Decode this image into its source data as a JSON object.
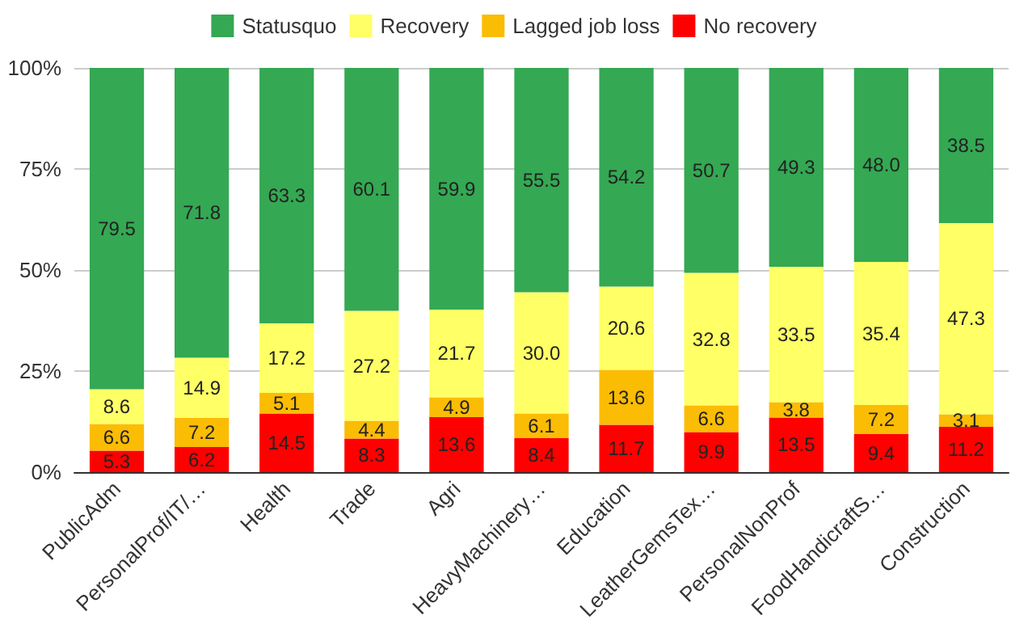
{
  "chart_data": {
    "type": "bar",
    "stacked": true,
    "categories": [
      "PublicAdm",
      "PersonalProf/IT/…",
      "Health",
      "Trade",
      "Agri",
      "HeavyMachinery…",
      "Education",
      "LeatherGemsTex…",
      "PersonalNonProf",
      "FoodHandicraftS…",
      "Construction"
    ],
    "series": [
      {
        "name": "No recovery",
        "color": "#ff0000",
        "values": [
          5.3,
          6.2,
          14.5,
          8.3,
          13.6,
          8.4,
          11.7,
          9.9,
          13.5,
          9.4,
          11.2
        ],
        "value_labels": [
          "5.3",
          "6.2",
          "14.5",
          "8.3",
          "13.6",
          "8.4",
          "11.7",
          "9.9",
          "13.5",
          "9.4",
          "11.2"
        ]
      },
      {
        "name": "Lagged job loss",
        "color": "#fbbc04",
        "values": [
          6.6,
          7.2,
          5.1,
          4.4,
          4.9,
          6.1,
          13.6,
          6.6,
          3.8,
          7.2,
          3.1
        ],
        "value_labels": [
          "6.6",
          "7.2",
          "5.1",
          "4.4",
          "4.9",
          "6.1",
          "13.6",
          "6.6",
          "3.8",
          "7.2",
          "3.1"
        ]
      },
      {
        "name": "Recovery",
        "color": "#ffff66",
        "values": [
          8.6,
          14.9,
          17.2,
          27.2,
          21.7,
          30.0,
          20.6,
          32.8,
          33.5,
          35.4,
          47.3
        ],
        "value_labels": [
          "8.6",
          "14.9",
          "17.2",
          "27.2",
          "21.7",
          "30.0",
          "20.6",
          "32.8",
          "33.5",
          "35.4",
          "47.3"
        ]
      },
      {
        "name": "Statusquo",
        "color": "#34a853",
        "values": [
          79.5,
          71.8,
          63.3,
          60.1,
          59.9,
          55.5,
          54.2,
          50.7,
          49.3,
          48.0,
          38.5
        ],
        "value_labels": [
          "79.5",
          "71.8",
          "63.3",
          "60.1",
          "59.9",
          "55.5",
          "54.2",
          "50.7",
          "49.3",
          "48.0",
          "38.5"
        ]
      }
    ],
    "ylim": [
      0,
      100
    ],
    "yticks": [
      {
        "value": 0,
        "label": "0%"
      },
      {
        "value": 25,
        "label": "25%"
      },
      {
        "value": 50,
        "label": "50%"
      },
      {
        "value": 75,
        "label": "75%"
      },
      {
        "value": 100,
        "label": "100%"
      }
    ],
    "grid": "y",
    "legend": "top"
  }
}
